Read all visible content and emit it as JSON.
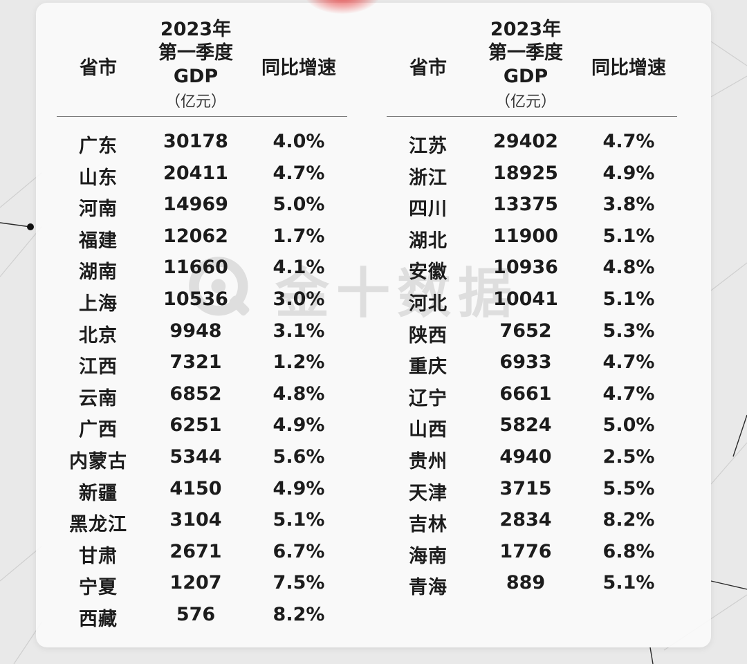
{
  "chart_data": {
    "type": "table",
    "columns": [
      "省市",
      "2023年第一季度GDP（亿元）",
      "同比增速"
    ],
    "header": {
      "province": "省市",
      "gdp_line1": "2023年",
      "gdp_line2": "第一季度",
      "gdp_line3": "GDP",
      "gdp_unit": "（亿元）",
      "growth": "同比增速"
    },
    "left": [
      {
        "province": "广东",
        "gdp": "30178",
        "growth": "4.0%"
      },
      {
        "province": "山东",
        "gdp": "20411",
        "growth": "4.7%"
      },
      {
        "province": "河南",
        "gdp": "14969",
        "growth": "5.0%"
      },
      {
        "province": "福建",
        "gdp": "12062",
        "growth": "1.7%"
      },
      {
        "province": "湖南",
        "gdp": "11660",
        "growth": "4.1%"
      },
      {
        "province": "上海",
        "gdp": "10536",
        "growth": "3.0%"
      },
      {
        "province": "北京",
        "gdp": "9948",
        "growth": "3.1%"
      },
      {
        "province": "江西",
        "gdp": "7321",
        "growth": "1.2%"
      },
      {
        "province": "云南",
        "gdp": "6852",
        "growth": "4.8%"
      },
      {
        "province": "广西",
        "gdp": "6251",
        "growth": "4.9%"
      },
      {
        "province": "内蒙古",
        "gdp": "5344",
        "growth": "5.6%"
      },
      {
        "province": "新疆",
        "gdp": "4150",
        "growth": "4.9%"
      },
      {
        "province": "黑龙江",
        "gdp": "3104",
        "growth": "5.1%"
      },
      {
        "province": "甘肃",
        "gdp": "2671",
        "growth": "6.7%"
      },
      {
        "province": "宁夏",
        "gdp": "1207",
        "growth": "7.5%"
      },
      {
        "province": "西藏",
        "gdp": "576",
        "growth": "8.2%"
      }
    ],
    "right": [
      {
        "province": "江苏",
        "gdp": "29402",
        "growth": "4.7%"
      },
      {
        "province": "浙江",
        "gdp": "18925",
        "growth": "4.9%"
      },
      {
        "province": "四川",
        "gdp": "13375",
        "growth": "3.8%"
      },
      {
        "province": "湖北",
        "gdp": "11900",
        "growth": "5.1%"
      },
      {
        "province": "安徽",
        "gdp": "10936",
        "growth": "4.8%"
      },
      {
        "province": "河北",
        "gdp": "10041",
        "growth": "5.1%"
      },
      {
        "province": "陕西",
        "gdp": "7652",
        "growth": "5.3%"
      },
      {
        "province": "重庆",
        "gdp": "6933",
        "growth": "4.7%"
      },
      {
        "province": "辽宁",
        "gdp": "6661",
        "growth": "4.7%"
      },
      {
        "province": "山西",
        "gdp": "5824",
        "growth": "5.0%"
      },
      {
        "province": "贵州",
        "gdp": "4940",
        "growth": "2.5%"
      },
      {
        "province": "天津",
        "gdp": "3715",
        "growth": "5.5%"
      },
      {
        "province": "吉林",
        "gdp": "2834",
        "growth": "8.2%"
      },
      {
        "province": "海南",
        "gdp": "1776",
        "growth": "6.8%"
      },
      {
        "province": "青海",
        "gdp": "889",
        "growth": "5.1%"
      }
    ]
  },
  "watermark": {
    "text": "金十数据",
    "icon": "jin10-logo-icon"
  },
  "colors": {
    "text": "#1c1c1c",
    "card": "#fafafa",
    "background": "#e9e9e9",
    "accent_glow": "#e61e1e"
  }
}
